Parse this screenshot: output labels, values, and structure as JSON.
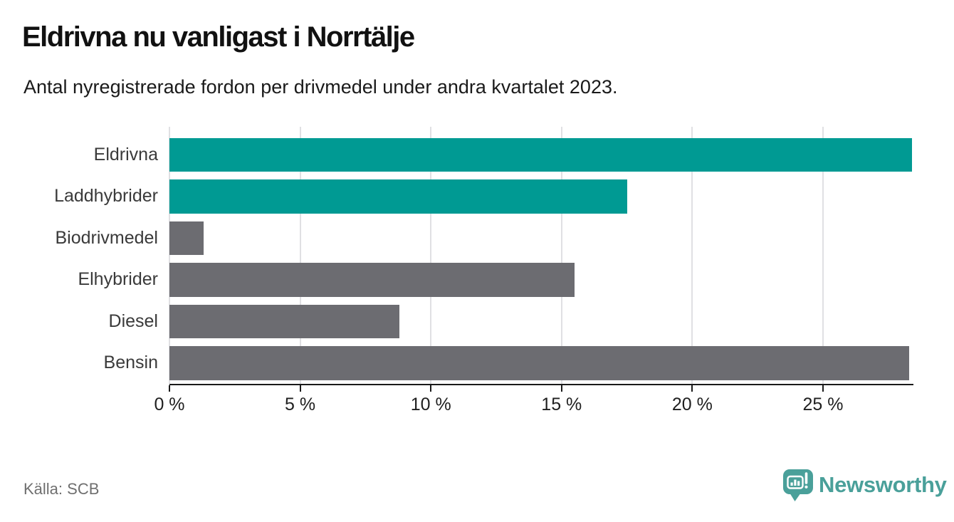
{
  "header": {
    "title": "Eldrivna nu vanligast i Norrtälje",
    "subtitle": "Antal nyregistrerade fordon per drivmedel under andra kvartalet 2023."
  },
  "chart_data": {
    "type": "bar",
    "orientation": "horizontal",
    "title": "Eldrivna nu vanligast i Norrtälje",
    "subtitle": "Antal nyregistrerade fordon per drivmedel under andra kvartalet 2023.",
    "categories": [
      "Eldrivna",
      "Laddhybrider",
      "Biodrivmedel",
      "Elhybrider",
      "Diesel",
      "Bensin"
    ],
    "values": [
      28.4,
      17.5,
      1.3,
      15.5,
      8.8,
      28.3
    ],
    "unit": "%",
    "highlighted": [
      true,
      true,
      false,
      false,
      false,
      false
    ],
    "highlight_color": "#009a93",
    "default_color": "#6c6c71",
    "xlabel": "",
    "ylabel": "",
    "xlim": [
      0,
      28.4
    ],
    "x_ticks": [
      0,
      5,
      10,
      15,
      20,
      25
    ],
    "x_tick_labels": [
      "0 %",
      "5 %",
      "10 %",
      "15 %",
      "20 %",
      "25 %"
    ],
    "grid": "vertical-gridlines-behind-bars",
    "legend": "none"
  },
  "footer": {
    "source": "Källa: SCB",
    "brand_name": "Newsworthy"
  },
  "colors": {
    "accent_teal": "#009a93",
    "neutral_gray": "#6c6c71",
    "gridline": "#e0e0e3",
    "axis": "#1a1a1a",
    "source_text": "#6f6f6f",
    "brand_teal": "#4aa09a"
  }
}
